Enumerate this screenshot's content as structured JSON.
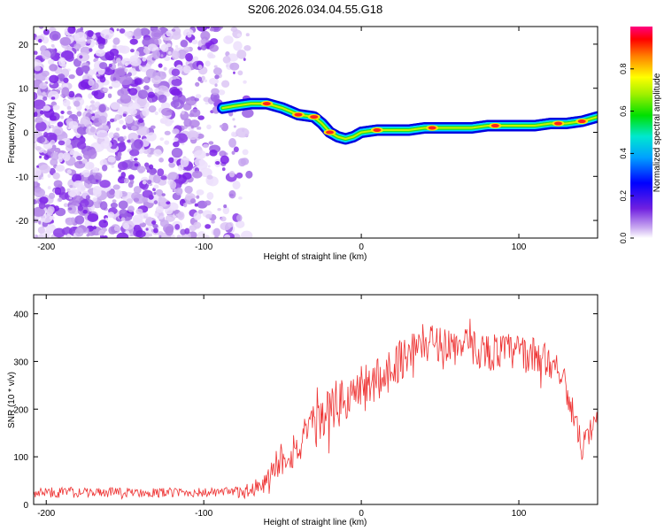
{
  "title": "S206.2026.034.04.55.G18",
  "colors": {
    "snr_line": "#ee3333",
    "ridge_low": "#0000e0",
    "ridge_mid": "#00d8ff",
    "ridge_high": "#ffe000",
    "ridge_peak": "#ff2020",
    "noise_light": "#d8c8f0",
    "noise_dark": "#8a2be2"
  },
  "chart_data": [
    {
      "type": "heatmap",
      "name": "spectrogram",
      "xlabel": "Height of straight line (km)",
      "ylabel": "Frequency (Hz)",
      "xlim": [
        -208,
        150
      ],
      "ylim": [
        -24,
        24
      ],
      "xticks": [
        -200,
        -100,
        0,
        100
      ],
      "yticks": [
        -20,
        -10,
        0,
        10,
        20
      ],
      "colorbar": {
        "label": "Normalized spectral amplitude",
        "range": [
          0,
          1
        ],
        "ticks": [
          "0.0",
          "0.2",
          "0.4",
          "0.6",
          "0.8"
        ],
        "tick_values": [
          0.0,
          0.2,
          0.4,
          0.6,
          0.8
        ]
      },
      "noise_region_x": [
        -208,
        -68
      ],
      "ridge": {
        "x": [
          -88,
          -80,
          -70,
          -60,
          -50,
          -40,
          -30,
          -25,
          -20,
          -15,
          -10,
          -5,
          0,
          10,
          20,
          30,
          40,
          50,
          60,
          70,
          80,
          90,
          100,
          110,
          120,
          130,
          140,
          150
        ],
        "freq": [
          5.5,
          6,
          6.5,
          6.5,
          5.5,
          4,
          3.5,
          2,
          0,
          -1,
          -1.5,
          -1,
          0,
          0.5,
          0.5,
          0.5,
          1,
          1,
          1,
          1,
          1.5,
          1.5,
          1.5,
          1.5,
          2,
          2,
          2.5,
          3.5
        ]
      },
      "ridge_peaks": [
        {
          "x": -60,
          "freq": 6.5
        },
        {
          "x": -40,
          "freq": 4
        },
        {
          "x": -30,
          "freq": 3.5
        },
        {
          "x": -20,
          "freq": 0
        },
        {
          "x": 10,
          "freq": 0.5
        },
        {
          "x": 45,
          "freq": 1
        },
        {
          "x": 85,
          "freq": 1.5
        },
        {
          "x": 125,
          "freq": 2
        },
        {
          "x": 140,
          "freq": 2.5
        }
      ]
    },
    {
      "type": "line",
      "name": "snr",
      "xlabel": "Height of straight line (km)",
      "ylabel": "SNR (10 * v/v)",
      "xlim": [
        -208,
        150
      ],
      "ylim": [
        0,
        440
      ],
      "xticks": [
        -200,
        -100,
        0,
        100
      ],
      "yticks": [
        0,
        100,
        200,
        300,
        400
      ],
      "series": [
        {
          "name": "SNR",
          "x": [
            -208,
            -190,
            -170,
            -150,
            -130,
            -110,
            -90,
            -80,
            -70,
            -65,
            -60,
            -55,
            -50,
            -40,
            -30,
            -20,
            -10,
            0,
            10,
            20,
            30,
            40,
            50,
            60,
            70,
            80,
            90,
            100,
            110,
            120,
            125,
            130,
            135,
            140,
            145,
            150
          ],
          "values": [
            25,
            25,
            25,
            25,
            25,
            25,
            25,
            25,
            30,
            35,
            40,
            80,
            100,
            120,
            160,
            200,
            220,
            240,
            260,
            290,
            320,
            340,
            340,
            330,
            330,
            320,
            320,
            320,
            310,
            300,
            290,
            250,
            180,
            120,
            140,
            180
          ],
          "noise": [
            10,
            12,
            10,
            10,
            10,
            10,
            10,
            12,
            18,
            25,
            30,
            35,
            40,
            45,
            45,
            50,
            55,
            55,
            50,
            45,
            45,
            40,
            40,
            40,
            40,
            40,
            40,
            40,
            40,
            35,
            35,
            35,
            30,
            30,
            30,
            30
          ]
        }
      ]
    }
  ]
}
